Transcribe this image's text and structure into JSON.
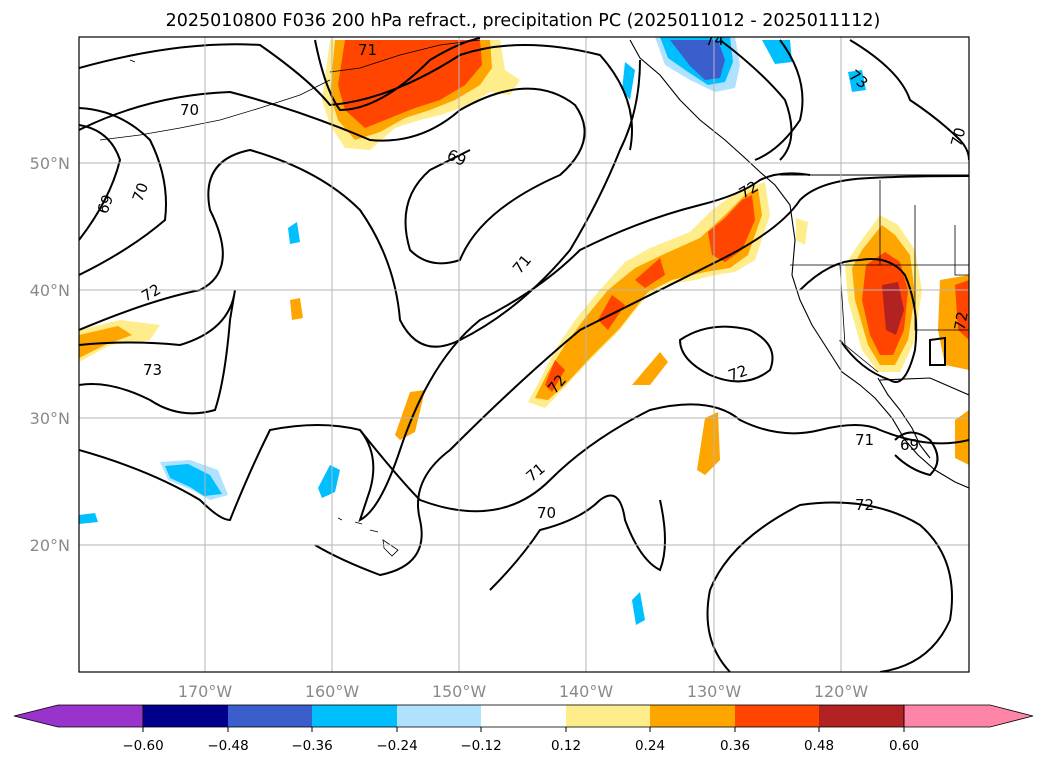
{
  "title": "2025010800 F036 200 hPa refract., precipitation PC (2025011012 - 2025011112)",
  "map": {
    "lat_ticks": [
      "20°N",
      "30°N",
      "40°N",
      "50°N"
    ],
    "lon_ticks": [
      "170°W",
      "160°W",
      "150°W",
      "140°W",
      "130°W",
      "120°W"
    ],
    "gridlines": true
  },
  "colorbar": {
    "tick_labels": [
      "−0.60",
      "−0.48",
      "−0.36",
      "−0.24",
      "−0.12",
      "0.12",
      "0.24",
      "0.36",
      "0.48",
      "0.60"
    ],
    "colors": [
      "#9933cc",
      "#00008b",
      "#3a5fcd",
      "#00bfff",
      "#b0e2ff",
      "#ffffff",
      "#ffec8b",
      "#ffa500",
      "#ff4500",
      "#b22222",
      "#ff85a8"
    ]
  },
  "contour_labels": [
    "71",
    "70",
    "69",
    "69",
    "70",
    "72",
    "73",
    "71",
    "72",
    "72",
    "71",
    "70",
    "72",
    "72",
    "71",
    "74",
    "73",
    "70",
    "69",
    "72"
  ]
}
